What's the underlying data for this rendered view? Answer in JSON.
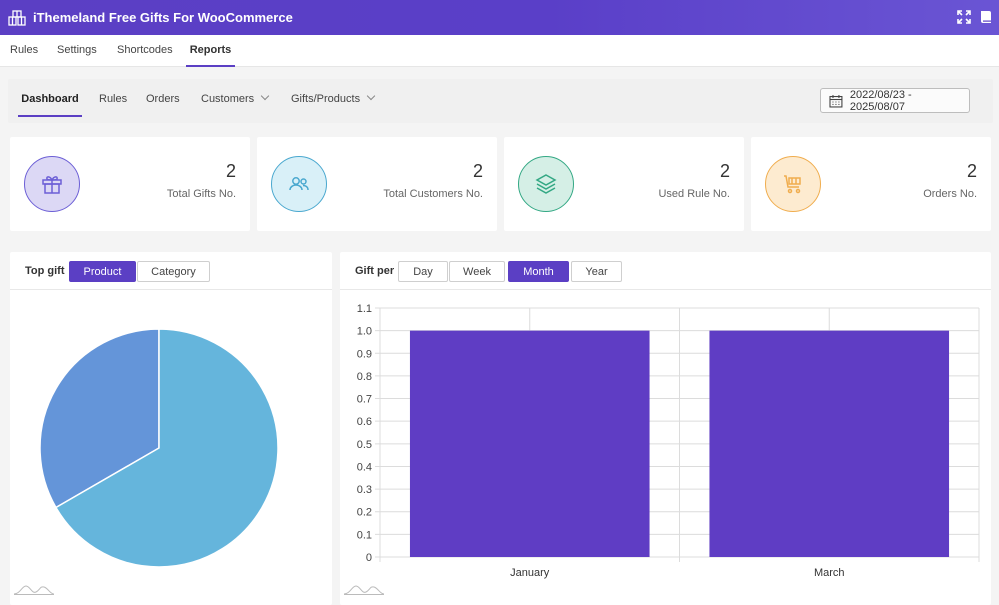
{
  "app": {
    "title": "iThemeland Free Gifts For WooCommerce",
    "icons": [
      "fullscreen-icon",
      "book-icon"
    ]
  },
  "main_nav": {
    "tabs": [
      {
        "label": "Rules",
        "active": false
      },
      {
        "label": "Settings",
        "active": false
      },
      {
        "label": "Shortcodes",
        "active": false
      },
      {
        "label": "Reports",
        "active": true
      }
    ]
  },
  "sub_nav": {
    "items": [
      {
        "label": "Dashboard",
        "active": true,
        "dropdown": false
      },
      {
        "label": "Rules",
        "active": false,
        "dropdown": false
      },
      {
        "label": "Orders",
        "active": false,
        "dropdown": false
      },
      {
        "label": "Customers",
        "active": false,
        "dropdown": true
      },
      {
        "label": "Gifts/Products",
        "active": false,
        "dropdown": true
      }
    ],
    "date_range": "2022/08/23 - 2025/08/07"
  },
  "stats": [
    {
      "value": "2",
      "label": "Total Gifts No.",
      "icon": "gift-icon",
      "color": "#6c5fd6",
      "bg": "#dcd8f5"
    },
    {
      "value": "2",
      "label": "Total Customers No.",
      "icon": "users-icon",
      "color": "#4aa8cf",
      "bg": "#d9f0f8"
    },
    {
      "value": "2",
      "label": "Used Rule No.",
      "icon": "layers-icon",
      "color": "#33a884",
      "bg": "#d5efe6"
    },
    {
      "value": "2",
      "label": "Orders No.",
      "icon": "cart-icon",
      "color": "#f0ad4e",
      "bg": "#fdebd0"
    }
  ],
  "top_gift": {
    "label": "Top gift",
    "toggles": [
      {
        "label": "Product",
        "active": true
      },
      {
        "label": "Category",
        "active": false
      }
    ]
  },
  "gift_per": {
    "label": "Gift per",
    "toggles": [
      {
        "label": "Day",
        "active": false
      },
      {
        "label": "Week",
        "active": false
      },
      {
        "label": "Month",
        "active": true
      },
      {
        "label": "Year",
        "active": false
      }
    ]
  },
  "colors": {
    "accent": "#5b3fc4",
    "bar": "#5f3dc4",
    "pie_1": "#6495d9",
    "pie_2": "#65b5dc"
  },
  "chart_data": [
    {
      "type": "pie",
      "slices": [
        {
          "value": 1,
          "color": "#6495d9"
        },
        {
          "value": 2,
          "color": "#65b5dc"
        }
      ]
    },
    {
      "type": "bar",
      "categories": [
        "January",
        "March"
      ],
      "values": [
        1,
        1
      ],
      "ylim": [
        0,
        1.1
      ],
      "yticks": [
        "0",
        "0.1",
        "0.2",
        "0.3",
        "0.4",
        "0.5",
        "0.6",
        "0.7",
        "0.8",
        "0.9",
        "1.0",
        "1.1"
      ],
      "grid": true
    }
  ]
}
